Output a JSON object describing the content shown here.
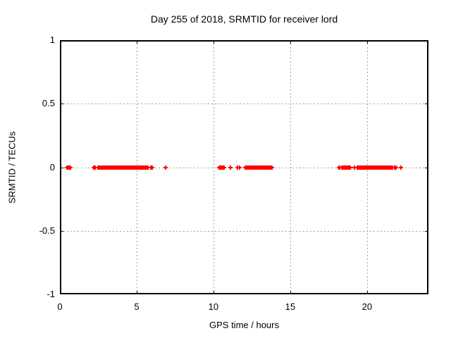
{
  "figure": {
    "background": "#ffffff",
    "text_color": "#000000"
  },
  "chart_data": {
    "type": "scatter",
    "title": "Day 255 of 2018, SRMTID for receiver lord",
    "xlabel": "GPS time / hours",
    "ylabel": "SRMTID / TECUs",
    "xlim": [
      0,
      24
    ],
    "ylim": [
      -1,
      1
    ],
    "xticks": [
      0,
      5,
      10,
      15,
      20
    ],
    "xtick_labels": [
      "0",
      "5",
      "10",
      "15",
      "20"
    ],
    "yticks": [
      1,
      0.5,
      0,
      -0.5,
      -1
    ],
    "ytick_labels": [
      "1",
      "0.5",
      "0",
      "-0.5",
      "-1"
    ],
    "grid": true,
    "legend_position": "none",
    "marker": "plus",
    "marker_color": "#ff0000",
    "grid_color": "#a0a0a0",
    "axis_color": "#000000",
    "series": [
      {
        "name": "SRMTID",
        "y_value": 0,
        "segments_hours": [
          [
            0.46,
            0.7
          ],
          [
            2.2,
            2.3
          ],
          [
            2.5,
            5.76
          ],
          [
            5.92,
            6.0
          ],
          [
            10.38,
            10.73
          ],
          [
            12.06,
            13.84
          ],
          [
            18.16,
            18.26
          ],
          [
            18.36,
            18.92
          ],
          [
            19.35,
            21.7
          ],
          [
            21.8,
            21.9
          ]
        ],
        "single_points_hours": [
          6.88,
          11.1,
          11.55,
          11.72,
          19.16,
          22.2
        ],
        "segment_step_hours": 0.04
      }
    ]
  }
}
